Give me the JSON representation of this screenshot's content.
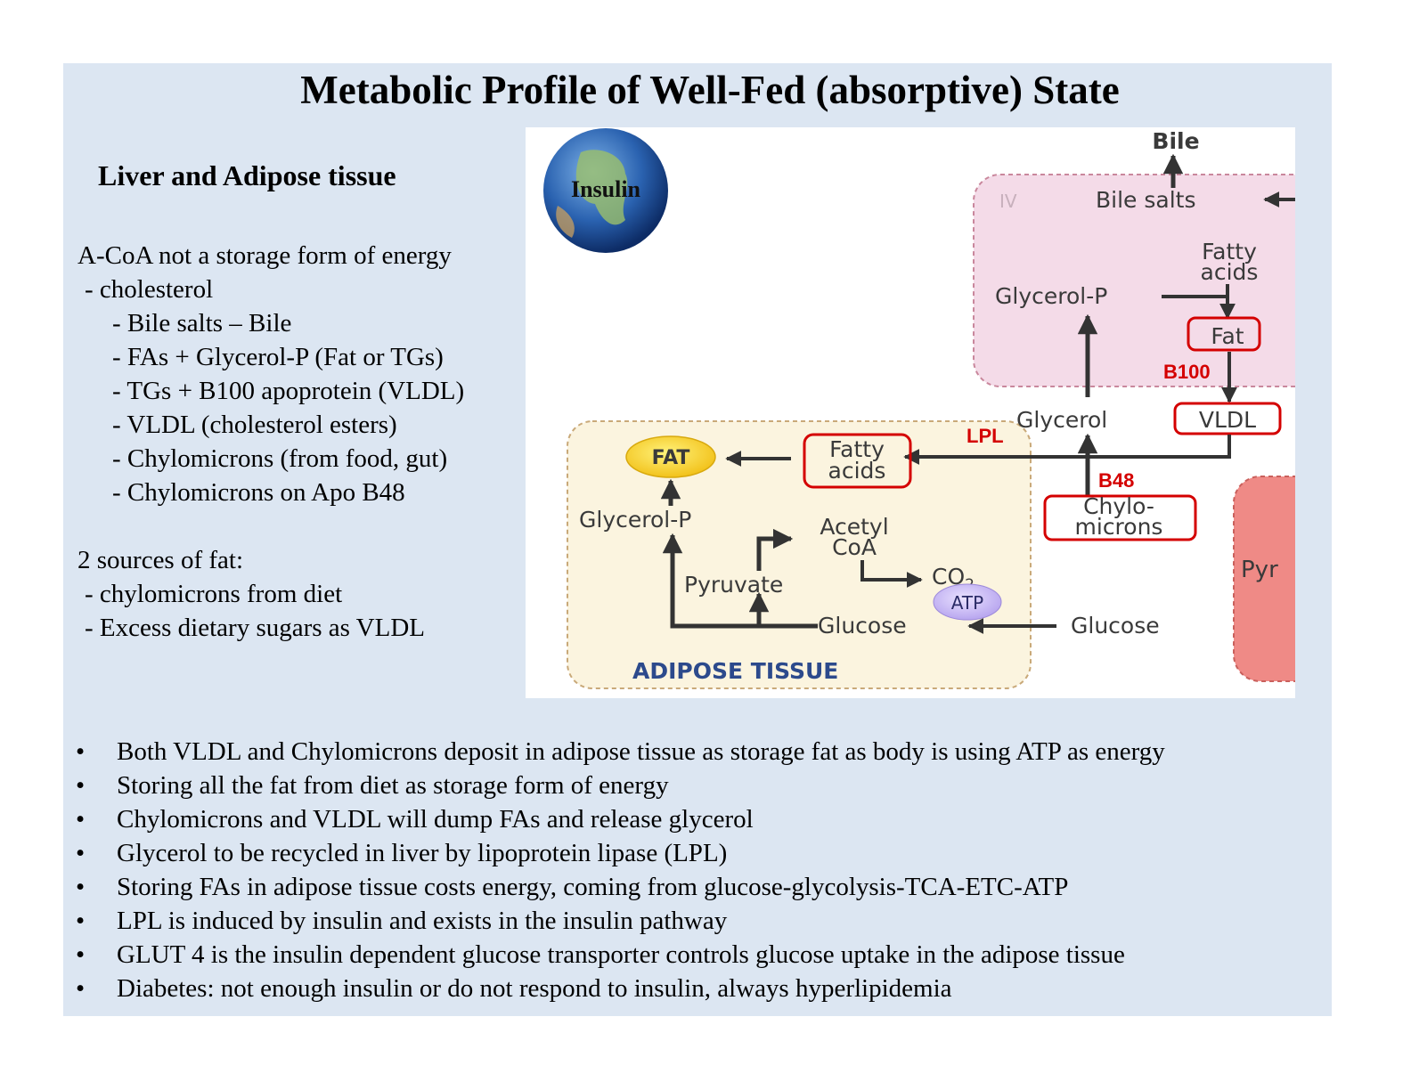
{
  "title": "Metabolic Profile of Well-Fed (absorptive) State",
  "subtitle": "Liver and Adipose tissue",
  "left_lines": [
    "A-CoA not a storage form of energy",
    "- cholesterol",
    "- Bile salts – Bile",
    "- FAs + Glycerol-P (Fat or TGs)",
    "- TGs + B100 apoprotein (VLDL)",
    "- VLDL (cholesterol esters)",
    "- Chylomicrons (from food, gut)",
    "- Chylomicrons on Apo B48",
    "2 sources of fat:",
    "- chylomicrons from diet",
    "- Excess dietary sugars as VLDL"
  ],
  "bullets": [
    "Both VLDL and Chylomicrons deposit in adipose tissue as storage fat as body is using ATP as energy",
    "Storing all the fat from diet as storage form of energy",
    "Chylomicrons and VLDL will dump FAs and release glycerol",
    "Glycerol to be recycled in liver by lipoprotein lipase (LPL)",
    "Storing FAs in adipose tissue costs energy, coming from glucose-glycolysis-TCA-ETC-ATP",
    "LPL is induced by insulin and exists in the insulin pathway",
    "GLUT 4 is the insulin dependent glucose transporter controls glucose uptake in the adipose tissue",
    "Diabetes: not enough insulin or do not respond to insulin, always hyperlipidemia"
  ],
  "diagram": {
    "insulin": "Insulin",
    "bile": "Bile",
    "bile_salts": "Bile salts",
    "fatty_acids_liver": [
      "Fatty",
      "acids"
    ],
    "glycerol_p_liver": "Glycerol-P",
    "fat_liver": "Fat",
    "b100": "B100",
    "glycerol": "Glycerol",
    "vldl": "VLDL",
    "lpl": "LPL",
    "fat_adipose": "FAT",
    "fatty_acids_adipose": [
      "Fatty",
      "acids"
    ],
    "b48": "B48",
    "chylomicrons": [
      "Chylo-",
      "microns"
    ],
    "glycerol_p_adipose": "Glycerol-P",
    "acetyl_coa": [
      "Acetyl",
      "CoA"
    ],
    "co2": "CO",
    "co2_sub": "2",
    "pyruvate": "Pyruvate",
    "atp": "ATP",
    "glucose_adipose": "Glucose",
    "glucose_blood": "Glucose",
    "adipose_tissue": "ADIPOSE TISSUE",
    "roman_iv": "IV",
    "pyr": "Pyr"
  },
  "colors": {
    "slide_bg": "#dce6f2",
    "highlight_red": "#d40000",
    "liver_region": "#f4dbe8",
    "adipose_region": "#fbf4df",
    "adipose_label": "#2c4a8c"
  }
}
